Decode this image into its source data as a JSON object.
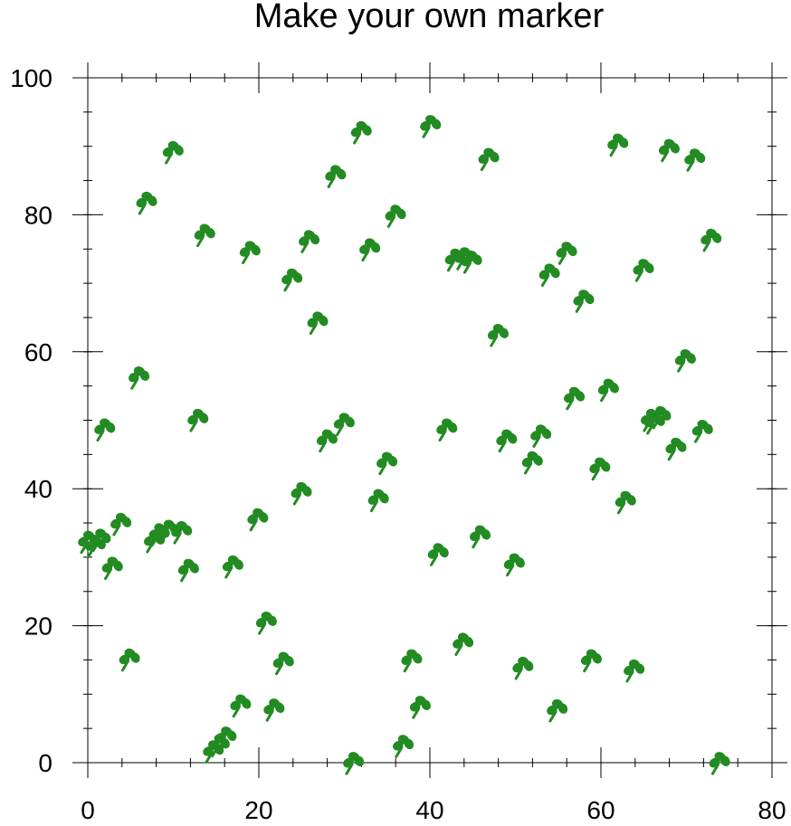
{
  "chart_data": {
    "type": "scatter",
    "title": "Make your own marker",
    "xlabel": "",
    "ylabel": "",
    "xlim": [
      0,
      80
    ],
    "ylim": [
      0,
      100
    ],
    "x_ticks": [
      0,
      20,
      40,
      60,
      80
    ],
    "y_ticks": [
      0,
      20,
      40,
      60,
      80,
      100
    ],
    "x_tick_labels": [
      "0",
      "20",
      "40",
      "60",
      "80"
    ],
    "y_tick_labels": [
      "0",
      "20",
      "40",
      "60",
      "80",
      "100"
    ],
    "x_minor_step": 4,
    "y_minor_step": 5,
    "grid": false,
    "marker": "clover",
    "marker_color": "#228b22",
    "points": [
      {
        "x": 0.0,
        "y": 32.4
      },
      {
        "x": 0.8,
        "y": 31.8
      },
      {
        "x": 1.4,
        "y": 32.7
      },
      {
        "x": 1.9,
        "y": 48.8
      },
      {
        "x": 2.8,
        "y": 28.6
      },
      {
        "x": 3.8,
        "y": 35.0
      },
      {
        "x": 4.8,
        "y": 15.2
      },
      {
        "x": 5.9,
        "y": 56.4
      },
      {
        "x": 6.8,
        "y": 81.9
      },
      {
        "x": 7.7,
        "y": 32.5
      },
      {
        "x": 8.3,
        "y": 33.5
      },
      {
        "x": 9.4,
        "y": 34.0
      },
      {
        "x": 9.9,
        "y": 89.3
      },
      {
        "x": 10.9,
        "y": 33.8
      },
      {
        "x": 11.7,
        "y": 28.3
      },
      {
        "x": 12.8,
        "y": 50.2
      },
      {
        "x": 13.6,
        "y": 77.2
      },
      {
        "x": 14.6,
        "y": 1.8
      },
      {
        "x": 15.3,
        "y": 2.7
      },
      {
        "x": 16.1,
        "y": 3.8
      },
      {
        "x": 16.9,
        "y": 28.8
      },
      {
        "x": 17.8,
        "y": 8.5
      },
      {
        "x": 18.9,
        "y": 74.7
      },
      {
        "x": 19.8,
        "y": 35.7
      },
      {
        "x": 20.8,
        "y": 20.6
      },
      {
        "x": 21.7,
        "y": 7.9
      },
      {
        "x": 22.8,
        "y": 14.7
      },
      {
        "x": 23.8,
        "y": 70.7
      },
      {
        "x": 24.9,
        "y": 39.5
      },
      {
        "x": 25.8,
        "y": 76.3
      },
      {
        "x": 26.8,
        "y": 64.4
      },
      {
        "x": 27.9,
        "y": 47.2
      },
      {
        "x": 28.9,
        "y": 85.8
      },
      {
        "x": 29.9,
        "y": 49.6
      },
      {
        "x": 31.0,
        "y": 0.1
      },
      {
        "x": 31.9,
        "y": 92.2
      },
      {
        "x": 32.9,
        "y": 75.1
      },
      {
        "x": 33.9,
        "y": 38.5
      },
      {
        "x": 34.9,
        "y": 43.9
      },
      {
        "x": 35.9,
        "y": 80.0
      },
      {
        "x": 36.8,
        "y": 2.6
      },
      {
        "x": 37.8,
        "y": 15.1
      },
      {
        "x": 38.8,
        "y": 8.3
      },
      {
        "x": 40.0,
        "y": 93.1
      },
      {
        "x": 40.9,
        "y": 30.6
      },
      {
        "x": 41.9,
        "y": 48.8
      },
      {
        "x": 42.9,
        "y": 73.6
      },
      {
        "x": 43.8,
        "y": 17.5
      },
      {
        "x": 44.0,
        "y": 73.8
      },
      {
        "x": 44.8,
        "y": 73.3
      },
      {
        "x": 45.8,
        "y": 33.2
      },
      {
        "x": 46.8,
        "y": 88.3
      },
      {
        "x": 47.9,
        "y": 62.6
      },
      {
        "x": 48.9,
        "y": 47.2
      },
      {
        "x": 49.8,
        "y": 29.1
      },
      {
        "x": 50.8,
        "y": 14.0
      },
      {
        "x": 51.9,
        "y": 44.0
      },
      {
        "x": 52.9,
        "y": 47.9
      },
      {
        "x": 53.9,
        "y": 71.4
      },
      {
        "x": 54.8,
        "y": 7.8
      },
      {
        "x": 55.9,
        "y": 74.6
      },
      {
        "x": 56.8,
        "y": 53.4
      },
      {
        "x": 57.9,
        "y": 67.6
      },
      {
        "x": 58.8,
        "y": 15.1
      },
      {
        "x": 59.8,
        "y": 43.1
      },
      {
        "x": 60.8,
        "y": 54.6
      },
      {
        "x": 61.9,
        "y": 90.4
      },
      {
        "x": 62.8,
        "y": 38.2
      },
      {
        "x": 63.8,
        "y": 13.6
      },
      {
        "x": 64.9,
        "y": 72.1
      },
      {
        "x": 65.8,
        "y": 50.2
      },
      {
        "x": 66.2,
        "y": 49.8
      },
      {
        "x": 66.9,
        "y": 50.6
      },
      {
        "x": 67.9,
        "y": 89.6
      },
      {
        "x": 68.7,
        "y": 46.0
      },
      {
        "x": 69.8,
        "y": 58.9
      },
      {
        "x": 70.9,
        "y": 88.2
      },
      {
        "x": 71.8,
        "y": 48.6
      },
      {
        "x": 72.8,
        "y": 76.5
      },
      {
        "x": 73.8,
        "y": 0.1
      }
    ]
  }
}
